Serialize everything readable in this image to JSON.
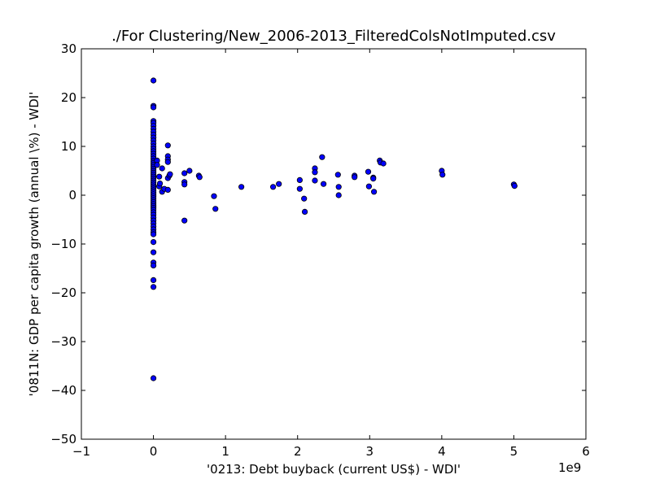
{
  "chart_data": {
    "type": "scatter",
    "title": "./For Clustering/New_2006-2013_FilteredColsNotImputed.csv",
    "xlabel": "'0213: Debt buyback  (current US$) - WDI'",
    "ylabel": "'0811N: GDP per capita growth  (annual \\%) - WDI'",
    "x_offset_label": "1e9",
    "xlim": [
      -1,
      6
    ],
    "ylim": [
      -50,
      30
    ],
    "xticks": [
      -1,
      0,
      1,
      2,
      3,
      4,
      5,
      6
    ],
    "yticks": [
      -50,
      -40,
      -30,
      -20,
      -10,
      0,
      10,
      20,
      30
    ],
    "xtick_labels": [
      "−1",
      "0",
      "1",
      "2",
      "3",
      "4",
      "5",
      "6"
    ],
    "ytick_labels": [
      "−50",
      "−40",
      "−30",
      "−20",
      "−10",
      "0",
      "10",
      "20",
      "30"
    ],
    "grid": false,
    "marker_color": "#0000ff",
    "marker_edge_color": "#000000",
    "series": [
      {
        "points": [
          [
            0,
            23.5
          ],
          [
            0,
            18.3
          ],
          [
            0,
            18.0
          ],
          [
            0,
            15.2
          ],
          [
            0,
            14.8
          ],
          [
            0,
            14.2
          ],
          [
            0,
            13.6
          ],
          [
            0,
            13.0
          ],
          [
            0,
            12.4
          ],
          [
            0,
            11.8
          ],
          [
            0,
            11.2
          ],
          [
            0,
            10.6
          ],
          [
            0,
            10.0
          ],
          [
            0,
            9.5
          ],
          [
            0,
            9.0
          ],
          [
            0,
            8.5
          ],
          [
            0,
            8.0
          ],
          [
            0,
            7.5
          ],
          [
            0,
            7.0
          ],
          [
            0,
            6.6
          ],
          [
            0,
            6.2
          ],
          [
            0,
            5.8
          ],
          [
            0,
            5.4
          ],
          [
            0,
            5.0
          ],
          [
            0,
            4.6
          ],
          [
            0,
            4.2
          ],
          [
            0,
            3.8
          ],
          [
            0,
            3.4
          ],
          [
            0,
            3.0
          ],
          [
            0,
            2.6
          ],
          [
            0,
            2.2
          ],
          [
            0,
            1.8
          ],
          [
            0,
            1.4
          ],
          [
            0,
            1.0
          ],
          [
            0,
            0.6
          ],
          [
            0,
            0.2
          ],
          [
            0,
            -0.2
          ],
          [
            0,
            -0.6
          ],
          [
            0,
            -1.0
          ],
          [
            0,
            -1.4
          ],
          [
            0,
            -1.8
          ],
          [
            0,
            -2.2
          ],
          [
            0,
            -2.6
          ],
          [
            0,
            -3.0
          ],
          [
            0,
            -3.5
          ],
          [
            0,
            -4.0
          ],
          [
            0,
            -4.6
          ],
          [
            0,
            -5.2
          ],
          [
            0,
            -5.8
          ],
          [
            0,
            -6.4
          ],
          [
            0,
            -7.0
          ],
          [
            0,
            -7.6
          ],
          [
            0,
            -8.0
          ],
          [
            0,
            -9.6
          ],
          [
            0,
            -11.7
          ],
          [
            0,
            -13.8
          ],
          [
            0,
            -14.4
          ],
          [
            0,
            -17.4
          ],
          [
            0,
            -18.8
          ],
          [
            0,
            -37.5
          ],
          [
            0.05,
            7.1
          ],
          [
            0.05,
            6.2
          ],
          [
            0.08,
            3.8
          ],
          [
            0.08,
            1.8
          ],
          [
            0.09,
            2.4
          ],
          [
            0.12,
            5.5
          ],
          [
            0.12,
            0.7
          ],
          [
            0.15,
            1.3
          ],
          [
            0.2,
            10.2
          ],
          [
            0.2,
            8.0
          ],
          [
            0.2,
            7.3
          ],
          [
            0.2,
            6.8
          ],
          [
            0.2,
            3.5
          ],
          [
            0.2,
            1.1
          ],
          [
            0.22,
            4.0
          ],
          [
            0.23,
            4.3
          ],
          [
            0.43,
            4.5
          ],
          [
            0.43,
            2.7
          ],
          [
            0.43,
            2.2
          ],
          [
            0.43,
            -5.2
          ],
          [
            0.5,
            5.0
          ],
          [
            0.63,
            4.0
          ],
          [
            0.64,
            3.7
          ],
          [
            0.84,
            -0.2
          ],
          [
            0.86,
            -2.8
          ],
          [
            1.22,
            1.7
          ],
          [
            1.66,
            1.7
          ],
          [
            1.74,
            2.3
          ],
          [
            2.03,
            3.1
          ],
          [
            2.03,
            1.3
          ],
          [
            2.09,
            -0.7
          ],
          [
            2.1,
            -3.4
          ],
          [
            2.24,
            5.5
          ],
          [
            2.24,
            4.7
          ],
          [
            2.24,
            3.0
          ],
          [
            2.34,
            7.8
          ],
          [
            2.36,
            2.3
          ],
          [
            2.56,
            4.2
          ],
          [
            2.57,
            1.7
          ],
          [
            2.57,
            0.0
          ],
          [
            2.79,
            4.0
          ],
          [
            2.79,
            3.7
          ],
          [
            2.98,
            4.8
          ],
          [
            2.99,
            1.8
          ],
          [
            3.05,
            3.6
          ],
          [
            3.05,
            3.4
          ],
          [
            3.06,
            0.7
          ],
          [
            3.14,
            7.1
          ],
          [
            3.15,
            6.7
          ],
          [
            3.19,
            6.5
          ],
          [
            4.0,
            5.0
          ],
          [
            4.01,
            4.2
          ],
          [
            5.0,
            2.2
          ],
          [
            5.01,
            1.9
          ]
        ]
      }
    ]
  }
}
